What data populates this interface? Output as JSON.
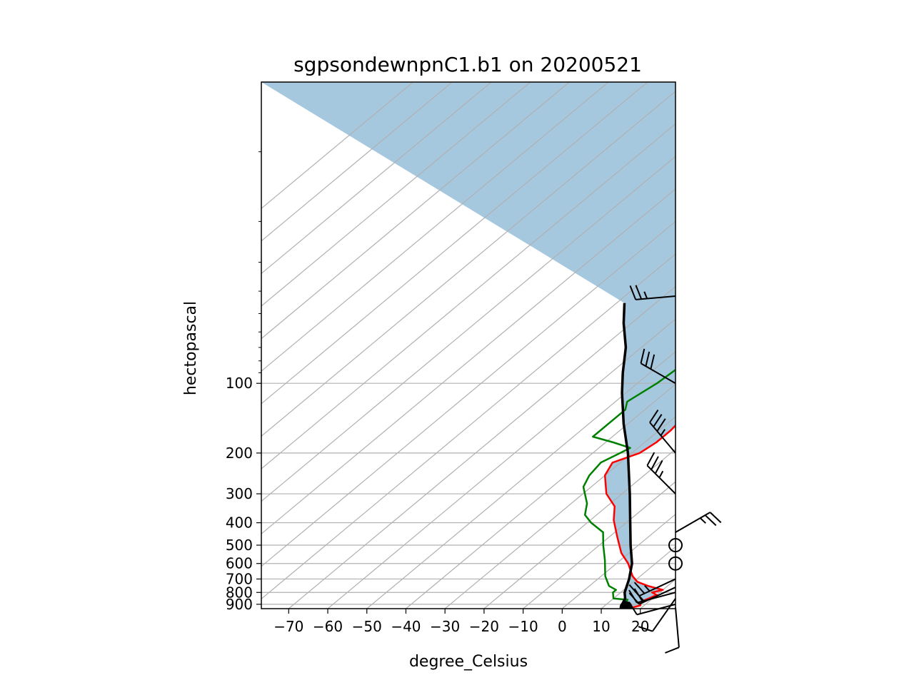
{
  "chart_data": {
    "type": "line",
    "title": "sgpsondewnpnC1.b1 on 20200521",
    "xlabel": "degree_Celsius",
    "ylabel": "hectopascal",
    "xlim": [
      -77,
      29
    ],
    "ylim": [
      940,
      5
    ],
    "y_scale": "log",
    "x_ticks": [
      -70,
      -60,
      -50,
      -40,
      -30,
      -20,
      -10,
      0,
      10,
      20
    ],
    "x_tick_labels": [
      "−70",
      "−60",
      "−50",
      "−40",
      "−30",
      "−20",
      "−10",
      "0",
      "10",
      "20"
    ],
    "y_ticks": [
      100,
      200,
      300,
      400,
      500,
      600,
      700,
      800,
      900
    ],
    "y_tick_labels": [
      "100",
      "200",
      "300",
      "400",
      "500",
      "600",
      "700",
      "800",
      "900"
    ],
    "grid": true,
    "skewed_isotherms": true,
    "cape_fill_color": "#a6c8df",
    "series": [
      {
        "color": "#ff0000",
        "points": [
          [
            17,
            940
          ],
          [
            19,
            910
          ],
          [
            18,
            880
          ],
          [
            19,
            850
          ],
          [
            20,
            820
          ],
          [
            18,
            800
          ],
          [
            20,
            780
          ],
          [
            15,
            750
          ],
          [
            11,
            720
          ],
          [
            8,
            680
          ],
          [
            3,
            600
          ],
          [
            -2,
            540
          ],
          [
            -8,
            460
          ],
          [
            -14,
            390
          ],
          [
            -18,
            340
          ],
          [
            -24,
            300
          ],
          [
            -30,
            250
          ],
          [
            -32,
            220
          ],
          [
            -28,
            200
          ],
          [
            -27,
            180
          ],
          [
            -27,
            160
          ],
          [
            -28,
            135
          ],
          [
            -27,
            120
          ],
          [
            -24,
            110
          ],
          [
            -22,
            100
          ],
          [
            -22,
            90
          ],
          [
            -20,
            80
          ],
          [
            -16,
            72
          ],
          [
            -14,
            62
          ],
          [
            -9,
            52
          ],
          [
            -6,
            42
          ],
          [
            -2,
            32
          ],
          [
            3,
            24
          ],
          [
            5,
            17
          ],
          [
            7,
            12
          ],
          [
            8,
            9
          ],
          [
            10,
            6
          ],
          [
            11,
            5
          ]
        ]
      },
      {
        "color": "#008000",
        "points": [
          [
            16,
            940
          ],
          [
            16,
            910
          ],
          [
            14,
            880
          ],
          [
            14,
            860
          ],
          [
            10,
            850
          ],
          [
            8,
            800
          ],
          [
            8,
            780
          ],
          [
            5,
            750
          ],
          [
            1,
            680
          ],
          [
            -4,
            580
          ],
          [
            -9,
            500
          ],
          [
            -13,
            440
          ],
          [
            -19,
            400
          ],
          [
            -23,
            370
          ],
          [
            -26,
            330
          ],
          [
            -32,
            280
          ],
          [
            -34,
            250
          ],
          [
            -35,
            220
          ],
          [
            -33,
            200
          ],
          [
            -32,
            190
          ],
          [
            -38,
            180
          ],
          [
            -45,
            170
          ],
          [
            -45,
            150
          ],
          [
            -45,
            130
          ],
          [
            -47,
            120
          ],
          [
            -45,
            100
          ],
          [
            -44,
            80
          ],
          [
            -41,
            65
          ],
          [
            -38,
            48
          ],
          [
            -34,
            34
          ],
          [
            -30,
            24
          ],
          [
            -27,
            16
          ],
          [
            -25,
            10
          ],
          [
            -22,
            7
          ],
          [
            -19,
            5
          ]
        ]
      },
      {
        "color": "#000000",
        "points": [
          [
            16,
            940
          ],
          [
            14,
            900
          ],
          [
            13,
            850
          ],
          [
            11,
            800
          ],
          [
            8,
            700
          ],
          [
            4,
            600
          ],
          [
            -2,
            500
          ],
          [
            -9,
            400
          ],
          [
            -18,
            300
          ],
          [
            -31,
            200
          ],
          [
            -41,
            150
          ],
          [
            -51,
            110
          ],
          [
            -57,
            90
          ],
          [
            -64,
            70
          ],
          [
            -72,
            55
          ],
          [
            -78,
            45
          ]
        ]
      }
    ],
    "surface_point": [
      16,
      930
    ],
    "wind_barbs": [
      {
        "p": 930,
        "spd": 10,
        "dir": 175
      },
      {
        "p": 900,
        "spd": 10,
        "dir": 255
      },
      {
        "p": 850,
        "spd": 10,
        "dir": 215
      },
      {
        "p": 800,
        "spd": 20,
        "dir": 255
      },
      {
        "p": 760,
        "spd": 20,
        "dir": 245
      },
      {
        "p": 700,
        "spd": 25,
        "dir": 245
      },
      {
        "p": 600,
        "spd": 0,
        "dir": 0
      },
      {
        "p": 500,
        "spd": 0,
        "dir": 0
      },
      {
        "p": 440,
        "spd": 25,
        "dir": 60
      },
      {
        "p": 300,
        "spd": 35,
        "dir": 315
      },
      {
        "p": 200,
        "spd": 35,
        "dir": 320
      },
      {
        "p": 100,
        "spd": 30,
        "dir": 300
      },
      {
        "p": 42,
        "spd": 25,
        "dir": 265
      }
    ]
  }
}
